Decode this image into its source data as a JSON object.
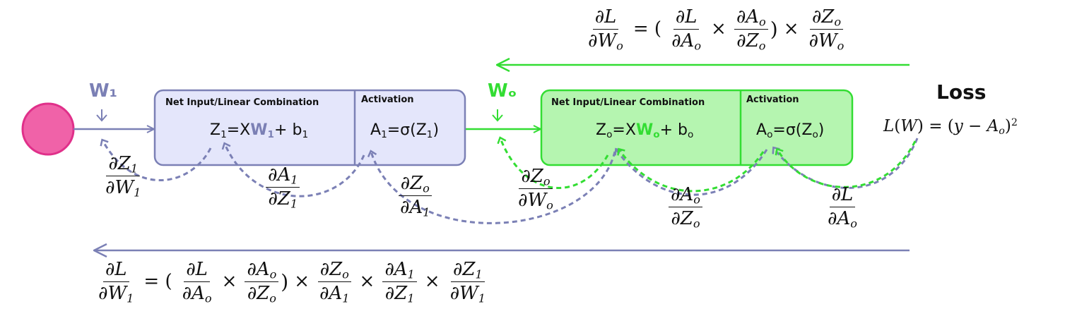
{
  "colors": {
    "input_node": "#f062a8",
    "input_node_border": "#e0308a",
    "hidden_box_fill": "#e4e6fb",
    "hidden_stroke": "#7b80b5",
    "output_box_fill": "#b5f5b0",
    "output_stroke": "#33dd33",
    "forward_arrow_green": "#33dd33",
    "backward_arrow_blue": "#7b80b5"
  },
  "hidden_layer": {
    "weight_label": "W₁",
    "linear_title": "Net Input/Linear Combination",
    "activation_title": "Activation",
    "linear_eq": {
      "lhs": "Z",
      "lhs_sub": "1",
      "eq": "=X",
      "weight": "W",
      "weight_sub": "1",
      "rest": "+ b",
      "rest_sub": "1"
    },
    "activation_eq": {
      "lhs": "A",
      "lhs_sub": "1",
      "rest": "=σ(Z",
      "rest_sub": "1",
      "close": ")"
    }
  },
  "output_layer": {
    "weight_label": "Wₒ",
    "linear_title": "Net Input/Linear Combination",
    "activation_title": "Activation",
    "linear_eq": {
      "lhs": "Z",
      "lhs_sub": "o",
      "eq": "=X",
      "weight": "W",
      "weight_sub": "o",
      "rest": "+ b",
      "rest_sub": "o"
    },
    "activation_eq": {
      "lhs": "A",
      "lhs_sub": "o",
      "rest": "=σ(Z",
      "rest_sub": "o",
      "close": ")"
    }
  },
  "loss": {
    "title": "Loss",
    "formula": {
      "L": "L",
      "W": "W",
      "lhs_rest": ") = (",
      "y": "y",
      "minus": " − ",
      "A": "A",
      "A_sub": "o",
      "close": ")",
      "sup": "2"
    }
  },
  "partials": {
    "dZ1_dW1": {
      "num": "∂Z",
      "num_sub": "1",
      "den": "∂W",
      "den_sub": "1"
    },
    "dA1_dZ1": {
      "num": "∂A",
      "num_sub": "1",
      "den": "∂Z",
      "den_sub": "1"
    },
    "dZo_dA1": {
      "num": "∂Z",
      "num_sub": "o",
      "den": "∂A",
      "den_sub": "1"
    },
    "dZo_dWo": {
      "num": "∂Z",
      "num_sub": "o",
      "den": "∂W",
      "den_sub": "o"
    },
    "dAo_dZo": {
      "num": "∂A",
      "num_sub": "o",
      "den": "∂Z",
      "den_sub": "o"
    },
    "dL_dAo": {
      "num": "∂L",
      "den": "∂A",
      "den_sub": "o"
    }
  },
  "top_formula": {
    "lhs_num": "∂L",
    "lhs_den": "∂W",
    "lhs_den_sub": "o",
    "eq": "= (",
    "f1_num": "∂L",
    "f1_den": "∂A",
    "f1_den_sub": "o",
    "times": "×",
    "f2_num": "∂A",
    "f2_num_sub": "o",
    "f2_den": "∂Z",
    "f2_den_sub": "o",
    "close": ")",
    "f3_num": "∂Z",
    "f3_num_sub": "o",
    "f3_den": "∂W",
    "f3_den_sub": "o"
  },
  "bottom_formula": {
    "lhs_num": "∂L",
    "lhs_den": "∂W",
    "lhs_den_sub": "1",
    "eq": "= (",
    "f1_num": "∂L",
    "f1_den": "∂A",
    "f1_den_sub": "o",
    "times": "×",
    "f2_num": "∂A",
    "f2_num_sub": "o",
    "f2_den": "∂Z",
    "f2_den_sub": "o",
    "close": ")",
    "f3_num": "∂Z",
    "f3_num_sub": "o",
    "f3_den": "∂A",
    "f3_den_sub": "1",
    "f4_num": "∂A",
    "f4_num_sub": "1",
    "f4_den": "∂Z",
    "f4_den_sub": "1",
    "f5_num": "∂Z",
    "f5_num_sub": "1",
    "f5_den": "∂W",
    "f5_den_sub": "1"
  }
}
